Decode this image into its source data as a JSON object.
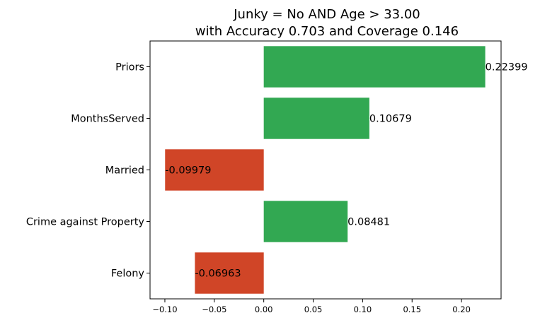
{
  "chart_data": {
    "type": "bar",
    "orientation": "horizontal",
    "title_lines": [
      "Junky = No AND Age > 33.00",
      "with Accuracy 0.703 and Coverage 0.146"
    ],
    "categories": [
      "Priors",
      "MonthsServed",
      "Married",
      "Crime against Property",
      "Felony"
    ],
    "values": [
      0.22399,
      0.10679,
      -0.09979,
      0.08481,
      -0.06963
    ],
    "value_labels": [
      "0.22399",
      "0.10679",
      "-0.09979",
      "0.08481",
      "-0.06963"
    ],
    "xlim": [
      -0.115,
      0.24
    ],
    "xticks": [
      -0.1,
      -0.05,
      0.0,
      0.05,
      0.1,
      0.15,
      0.2
    ],
    "xtick_labels": [
      "−0.10",
      "−0.05",
      "0.00",
      "0.05",
      "0.10",
      "0.15",
      "0.20"
    ],
    "grid": false,
    "positive_color": "#32a852",
    "negative_color": "#d04527"
  }
}
